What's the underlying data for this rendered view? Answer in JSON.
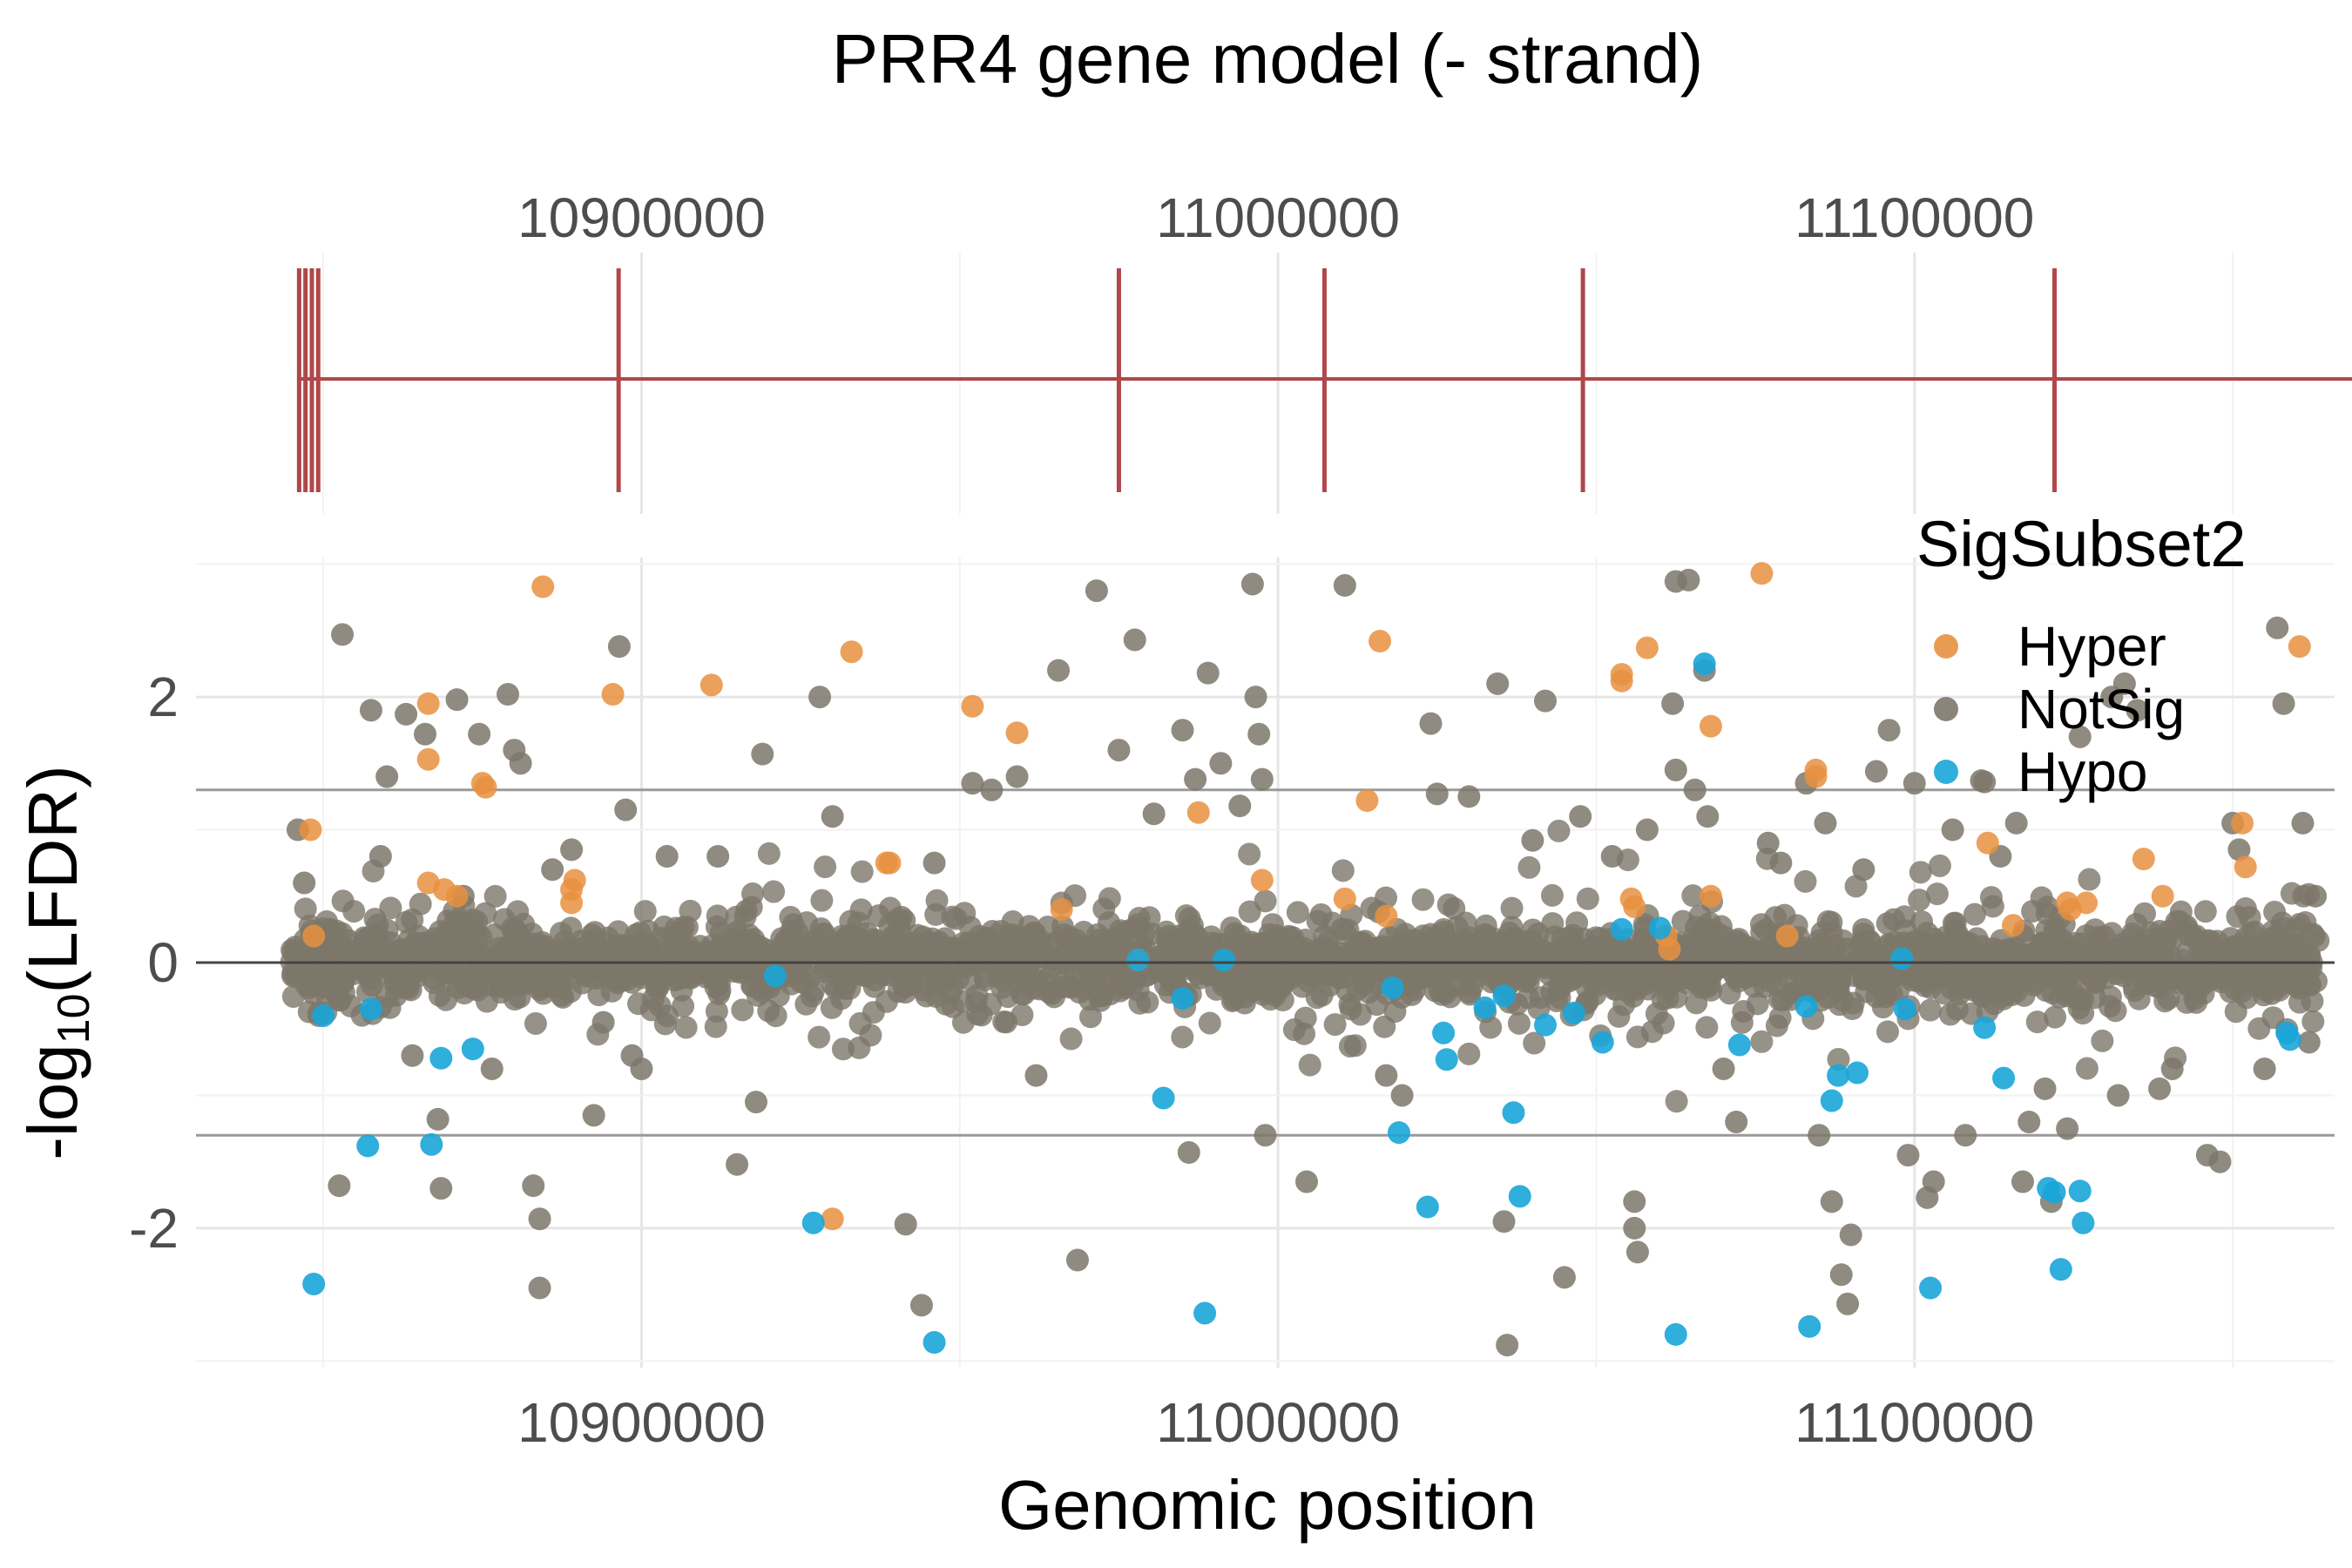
{
  "figure": {
    "title": "PRR4 gene model (- strand)",
    "colors": {
      "background": "#ffffff",
      "grid_major": "#e6e6e6",
      "grid_minor": "#f2f2f2",
      "gene": "#b0474a",
      "zero_line": "#444444",
      "threshold_line": "#9a9a9a",
      "tick_text": "#4d4d4d",
      "label_text": "#000000"
    }
  },
  "chart_data": [
    {
      "type": "gene_model",
      "title": "PRR4 gene model (- strand)",
      "strand": "-",
      "x_ticks": [
        10900000,
        11000000,
        11100000
      ],
      "xlim": [
        10830000,
        11166000
      ],
      "gene_span": [
        10846200,
        11173400
      ],
      "exons": [
        10846200,
        10847200,
        10848200,
        10849200,
        10896400,
        10975000,
        11007300,
        11047900,
        11122000,
        11173400
      ]
    },
    {
      "type": "scatter",
      "xlabel": "Genomic position",
      "ylabel": "-log10(LFDR)",
      "ylabel_parts": {
        "pre": "-log",
        "sub": "10",
        "post": "(LFDR)"
      },
      "xlim": [
        10830000,
        11166000
      ],
      "ylim": [
        -3.05,
        3.05
      ],
      "x_ticks": [
        10900000,
        11000000,
        11100000
      ],
      "y_ticks": [
        -2,
        0,
        2
      ],
      "y_tick_labels": [
        "-2",
        "0",
        "2"
      ],
      "thresholds": [
        1.3,
        -1.3
      ],
      "zero_line": 0,
      "grid": true,
      "legend": {
        "title": "SigSubset2",
        "position": "top-right",
        "entries": [
          {
            "label": "Hyper",
            "color": "#e8903f"
          },
          {
            "label": "NotSig",
            "color": "#7d776a"
          },
          {
            "label": "Hypo",
            "color": "#1aa5d8"
          }
        ]
      },
      "series": [
        {
          "name": "Hyper",
          "color": "#e8903f",
          "points": [
            [
              10848000,
              1.0
            ],
            [
              10848500,
              0.2
            ],
            [
              10866500,
              1.95
            ],
            [
              10866500,
              1.53
            ],
            [
              10866500,
              0.6
            ],
            [
              10869000,
              0.55
            ],
            [
              10871000,
              0.5
            ],
            [
              10875000,
              1.35
            ],
            [
              10875500,
              1.32
            ],
            [
              10884500,
              2.83
            ],
            [
              10889000,
              0.55
            ],
            [
              10889500,
              0.62
            ],
            [
              10889000,
              0.45
            ],
            [
              10895500,
              2.02
            ],
            [
              10911000,
              2.09
            ],
            [
              10930000,
              -1.93
            ],
            [
              10933000,
              2.34
            ],
            [
              10938500,
              0.75
            ],
            [
              10939000,
              0.75
            ],
            [
              10952000,
              1.93
            ],
            [
              10959000,
              1.73
            ],
            [
              10966000,
              0.4
            ],
            [
              10978000,
              0.02
            ],
            [
              10987500,
              1.13
            ],
            [
              10997500,
              0.62
            ],
            [
              11010500,
              0.48
            ],
            [
              11014000,
              1.22
            ],
            [
              11016000,
              2.42
            ],
            [
              11017000,
              0.35
            ],
            [
              11054000,
              2.17
            ],
            [
              11054000,
              2.12
            ],
            [
              11055500,
              0.48
            ],
            [
              11056000,
              0.42
            ],
            [
              11058000,
              2.37
            ],
            [
              11061000,
              0.2
            ],
            [
              11061500,
              0.1
            ],
            [
              11068000,
              1.78
            ],
            [
              11068000,
              0.5
            ],
            [
              11076000,
              2.93
            ],
            [
              11080000,
              0.2
            ],
            [
              11084500,
              1.45
            ],
            [
              11084500,
              1.4
            ],
            [
              11111500,
              0.9
            ],
            [
              11115500,
              0.28
            ],
            [
              11124000,
              0.45
            ],
            [
              11124500,
              0.4
            ],
            [
              11127000,
              0.45
            ],
            [
              11136000,
              0.78
            ],
            [
              11139000,
              0.5
            ],
            [
              11151500,
              1.05
            ],
            [
              11152000,
              0.72
            ],
            [
              11160500,
              2.38
            ]
          ]
        },
        {
          "name": "Hypo",
          "color": "#1aa5d8",
          "points": [
            [
              10848500,
              -2.42
            ],
            [
              10850000,
              -0.4
            ],
            [
              10857000,
              -1.38
            ],
            [
              10857500,
              -0.35
            ],
            [
              10867000,
              -1.37
            ],
            [
              10868500,
              -0.72
            ],
            [
              10873500,
              -0.65
            ],
            [
              10921000,
              -0.1
            ],
            [
              10927000,
              -1.96
            ],
            [
              10946000,
              -2.86
            ],
            [
              10978000,
              0.02
            ],
            [
              10982000,
              -1.02
            ],
            [
              10985000,
              -0.27
            ],
            [
              10988500,
              -2.64
            ],
            [
              10991500,
              0.02
            ],
            [
              11018000,
              -0.19
            ],
            [
              11019000,
              -1.28
            ],
            [
              11023500,
              -1.84
            ],
            [
              11026000,
              -0.53
            ],
            [
              11026500,
              -0.73
            ],
            [
              11032500,
              -0.34
            ],
            [
              11035500,
              -0.25
            ],
            [
              11037000,
              -1.13
            ],
            [
              11038000,
              -1.76
            ],
            [
              11042000,
              -0.47
            ],
            [
              11046500,
              -0.38
            ],
            [
              11051000,
              -0.6
            ],
            [
              11054000,
              0.25
            ],
            [
              11060000,
              0.26
            ],
            [
              11062500,
              -2.8
            ],
            [
              11067000,
              2.25
            ],
            [
              11072500,
              -0.62
            ],
            [
              11083000,
              -0.33
            ],
            [
              11083500,
              -2.74
            ],
            [
              11087000,
              -1.04
            ],
            [
              11088000,
              -0.85
            ],
            [
              11091000,
              -0.83
            ],
            [
              11098000,
              0.03
            ],
            [
              11098500,
              -0.35
            ],
            [
              11102500,
              -2.45
            ],
            [
              11111000,
              -0.49
            ],
            [
              11114000,
              -0.87
            ],
            [
              11121000,
              -1.7
            ],
            [
              11122000,
              -1.73
            ],
            [
              11123000,
              -2.31
            ],
            [
              11126000,
              -1.72
            ],
            [
              11126500,
              -1.96
            ],
            [
              11158500,
              -0.53
            ],
            [
              11159000,
              -0.58
            ]
          ]
        },
        {
          "name": "NotSig",
          "color": "#7d776a",
          "sampled_points": [
            [
              10846000,
              1.0
            ],
            [
              10847000,
              0.6
            ],
            [
              10852500,
              -1.68
            ],
            [
              10853000,
              2.47
            ],
            [
              10857500,
              1.9
            ],
            [
              10859000,
              0.8
            ],
            [
              10860000,
              1.4
            ],
            [
              10863000,
              1.87
            ],
            [
              10864000,
              -0.7
            ],
            [
              10866000,
              1.72
            ],
            [
              10868000,
              -1.18
            ],
            [
              10868500,
              -1.7
            ],
            [
              10871000,
              1.98
            ],
            [
              10872000,
              0.5
            ],
            [
              10874500,
              1.72
            ],
            [
              10876500,
              -0.8
            ],
            [
              10879000,
              2.02
            ],
            [
              10880000,
              1.6
            ],
            [
              10881000,
              1.5
            ],
            [
              10883000,
              -1.68
            ],
            [
              10884000,
              -1.93
            ],
            [
              10884000,
              -2.45
            ],
            [
              10886000,
              0.7
            ],
            [
              10889000,
              0.85
            ],
            [
              10892500,
              -1.15
            ],
            [
              10894000,
              -0.45
            ],
            [
              10896500,
              2.38
            ],
            [
              10897500,
              1.15
            ],
            [
              10898500,
              -0.7
            ],
            [
              10900000,
              -0.8
            ],
            [
              10904000,
              0.8
            ],
            [
              10912000,
              0.8
            ],
            [
              10915000,
              -1.52
            ],
            [
              10918000,
              -1.05
            ],
            [
              10919000,
              1.57
            ],
            [
              10928000,
              2.0
            ],
            [
              10930000,
              1.1
            ],
            [
              10941500,
              -1.97
            ],
            [
              10944000,
              -2.58
            ],
            [
              10946000,
              0.75
            ],
            [
              10952000,
              1.35
            ],
            [
              10955000,
              1.3
            ],
            [
              10959000,
              1.4
            ],
            [
              10962000,
              -0.85
            ],
            [
              10965500,
              2.2
            ],
            [
              10968500,
              -2.24
            ],
            [
              10971500,
              2.8
            ],
            [
              10975000,
              1.6
            ],
            [
              10977500,
              2.43
            ],
            [
              10980500,
              1.12
            ],
            [
              10985000,
              1.75
            ],
            [
              10986000,
              -1.43
            ],
            [
              10987000,
              1.38
            ],
            [
              10989000,
              2.18
            ],
            [
              10991000,
              1.5
            ],
            [
              10994000,
              1.18
            ],
            [
              10996000,
              2.85
            ],
            [
              10996500,
              2.0
            ],
            [
              10997000,
              1.72
            ],
            [
              10997500,
              1.38
            ],
            [
              10998000,
              -1.3
            ],
            [
              11004500,
              -1.65
            ],
            [
              11010500,
              2.84
            ],
            [
              11017000,
              -0.85
            ],
            [
              11019500,
              -1.0
            ],
            [
              11024000,
              1.8
            ],
            [
              11025000,
              1.27
            ],
            [
              11030000,
              1.25
            ],
            [
              11034500,
              2.1
            ],
            [
              11035500,
              -1.95
            ],
            [
              11036000,
              -2.88
            ],
            [
              11040000,
              0.92
            ],
            [
              11042000,
              1.97
            ],
            [
              11045000,
              -2.37
            ],
            [
              11047500,
              1.1
            ],
            [
              11052500,
              0.8
            ],
            [
              11056000,
              -1.8
            ],
            [
              11056500,
              -2.18
            ],
            [
              11056000,
              -2.0
            ],
            [
              11058000,
              1.0
            ],
            [
              11062500,
              1.45
            ],
            [
              11062000,
              1.95
            ],
            [
              11062500,
              2.87
            ],
            [
              11064500,
              2.88
            ],
            [
              11065500,
              1.3
            ],
            [
              11067000,
              2.2
            ],
            [
              11067500,
              1.1
            ],
            [
              11070000,
              -0.8
            ],
            [
              11072000,
              -1.2
            ],
            [
              11077000,
              0.9
            ],
            [
              11079000,
              0.75
            ],
            [
              11083000,
              1.35
            ],
            [
              11085000,
              -1.3
            ],
            [
              11086000,
              1.05
            ],
            [
              11087000,
              -1.8
            ],
            [
              11088500,
              -2.35
            ],
            [
              11089500,
              -2.57
            ],
            [
              11090000,
              -2.05
            ],
            [
              11092000,
              0.7
            ],
            [
              11094000,
              1.44
            ],
            [
              11096000,
              1.75
            ],
            [
              11099000,
              -1.45
            ],
            [
              11100000,
              1.35
            ],
            [
              11102000,
              -1.77
            ],
            [
              11103000,
              -1.65
            ],
            [
              11106000,
              1.0
            ],
            [
              11108000,
              -1.3
            ],
            [
              11110500,
              1.37
            ],
            [
              11111000,
              1.36
            ],
            [
              11113500,
              0.8
            ],
            [
              11116000,
              1.05
            ],
            [
              11117000,
              -1.65
            ],
            [
              11118000,
              -1.2
            ],
            [
              11120500,
              -0.95
            ],
            [
              11121500,
              -1.8
            ],
            [
              11124000,
              -1.25
            ],
            [
              11126000,
              1.7
            ],
            [
              11131000,
              2.0
            ],
            [
              11132000,
              -1.0
            ],
            [
              11133000,
              2.1
            ],
            [
              11135000,
              1.9
            ],
            [
              11138500,
              -0.95
            ],
            [
              11140500,
              -0.8
            ],
            [
              11146000,
              -1.45
            ],
            [
              11148000,
              -1.5
            ],
            [
              11150000,
              1.05
            ],
            [
              11151000,
              0.85
            ],
            [
              11155000,
              -0.8
            ],
            [
              11157000,
              2.52
            ],
            [
              11158000,
              1.95
            ],
            [
              11161000,
              1.05
            ],
            [
              11162000,
              -0.6
            ],
            [
              11163000,
              0.5
            ]
          ]
        }
      ]
    }
  ]
}
